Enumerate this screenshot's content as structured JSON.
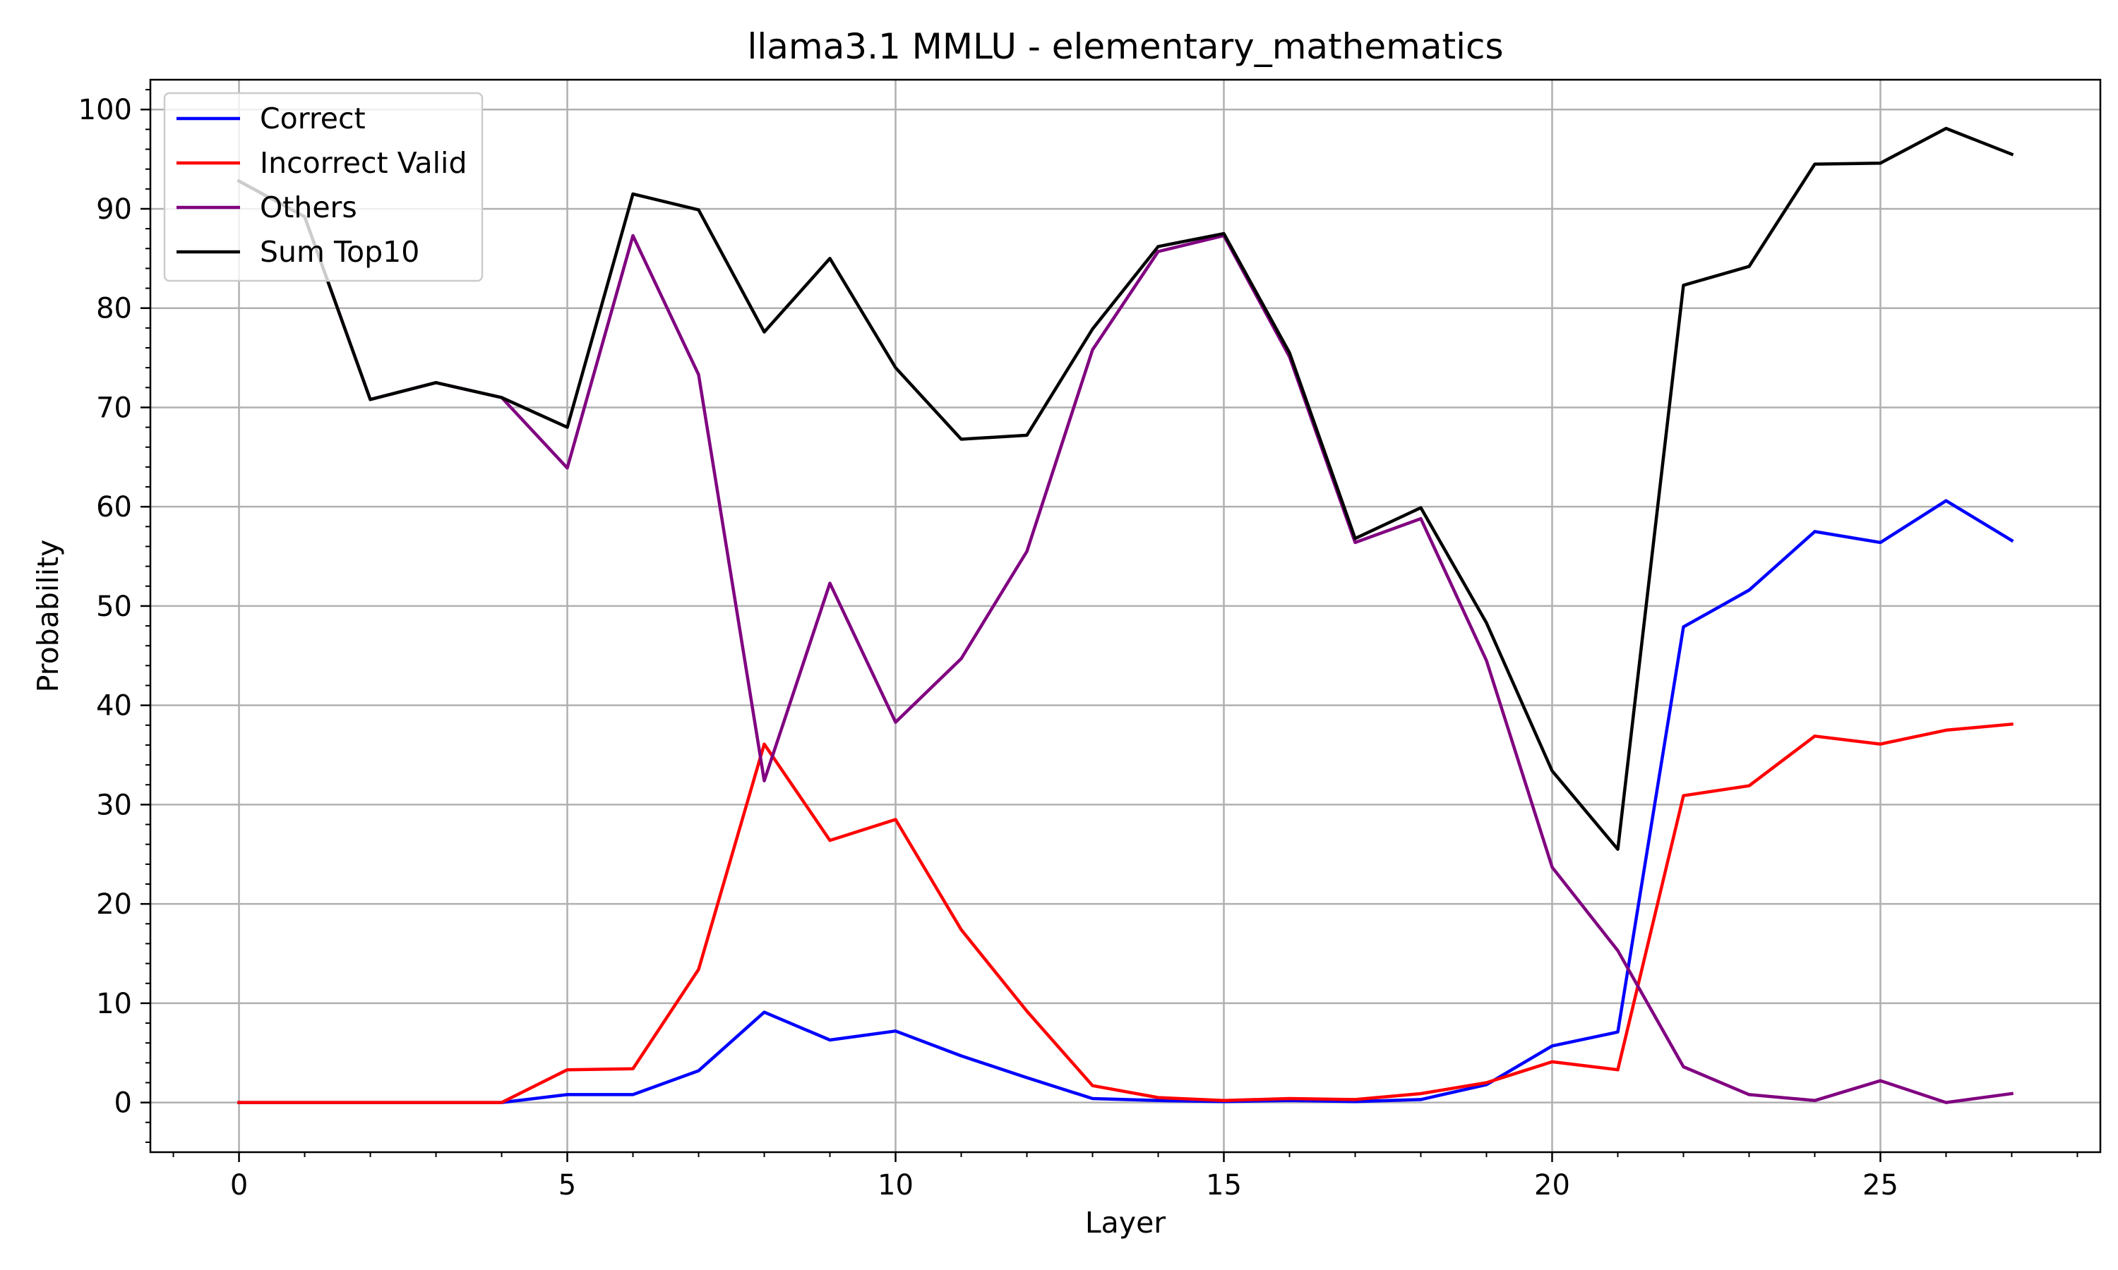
{
  "chart_data": {
    "type": "line",
    "title": "llama3.1 MMLU - elementary_mathematics",
    "xlabel": "Layer",
    "ylabel": "Probability",
    "xlim": [
      -1.35,
      28.35
    ],
    "ylim": [
      -5,
      103
    ],
    "xticks": [
      0,
      5,
      10,
      15,
      20,
      25
    ],
    "yticks": [
      0,
      10,
      20,
      30,
      40,
      50,
      60,
      70,
      80,
      90,
      100
    ],
    "grid": true,
    "legend_position": "top-left",
    "x": [
      0,
      1,
      2,
      3,
      4,
      5,
      6,
      7,
      8,
      9,
      10,
      11,
      12,
      13,
      14,
      15,
      16,
      17,
      18,
      19,
      20,
      21,
      22,
      23,
      24,
      25,
      26,
      27
    ],
    "series": [
      {
        "name": "Correct",
        "color": "#0000ff",
        "values": [
          0,
          0,
          0,
          0,
          0,
          0.8,
          0.8,
          3.2,
          9.1,
          6.3,
          7.2,
          4.7,
          2.5,
          0.4,
          0.2,
          0.1,
          0.2,
          0.1,
          0.3,
          1.8,
          5.7,
          7.1,
          47.9,
          51.6,
          57.5,
          56.4,
          60.6,
          56.6
        ]
      },
      {
        "name": "Incorrect Valid",
        "color": "#ff0000",
        "values": [
          0,
          0,
          0,
          0,
          0,
          3.3,
          3.4,
          13.4,
          36.1,
          26.4,
          28.5,
          17.4,
          9.2,
          1.7,
          0.5,
          0.2,
          0.4,
          0.3,
          0.9,
          2.0,
          4.1,
          3.3,
          30.9,
          31.9,
          36.9,
          36.1,
          37.5,
          38.1
        ]
      },
      {
        "name": "Others",
        "color": "#800080",
        "values": [
          92.8,
          89.2,
          70.8,
          72.5,
          71.0,
          63.9,
          87.3,
          73.3,
          32.4,
          52.3,
          38.3,
          44.7,
          55.5,
          75.8,
          85.7,
          87.3,
          75.1,
          56.4,
          58.8,
          44.5,
          23.7,
          15.3,
          3.6,
          0.8,
          0.2,
          2.2,
          0.0,
          0.9
        ]
      },
      {
        "name": "Sum Top10",
        "color": "#000000",
        "values": [
          92.8,
          89.2,
          70.8,
          72.5,
          71.0,
          68.0,
          91.5,
          89.9,
          77.6,
          85.0,
          74.0,
          66.8,
          67.2,
          77.9,
          86.2,
          87.5,
          75.5,
          56.8,
          59.9,
          48.3,
          33.4,
          25.5,
          82.3,
          84.2,
          94.5,
          94.6,
          98.1,
          95.5
        ]
      }
    ]
  }
}
